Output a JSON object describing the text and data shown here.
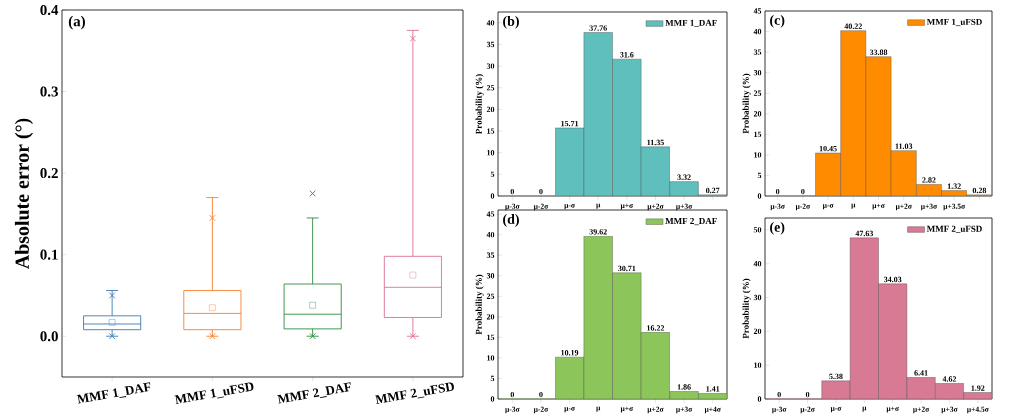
{
  "chart_data": [
    {
      "type": "box",
      "annotations": [
        "(a)"
      ],
      "ylabel": "Absolute error (°)",
      "categories": [
        "MMF 1_DAF",
        "MMF 1_uFSD",
        "MMF 2_DAF",
        "MMF 2_uFSD"
      ],
      "colors": [
        "#3a7ab5",
        "#f77f2a",
        "#2e8b3e",
        "#d9718f"
      ],
      "boxes": [
        {
          "low": 0,
          "q1": 0.008,
          "median": 0.015,
          "q3": 0.025,
          "high": 0.056,
          "mean": 0.017,
          "outliers": [
            0.05,
            0
          ]
        },
        {
          "low": 0,
          "q1": 0.008,
          "median": 0.028,
          "q3": 0.056,
          "high": 0.17,
          "mean": 0.035,
          "outliers": [
            0.145,
            0
          ]
        },
        {
          "low": 0,
          "q1": 0.009,
          "median": 0.027,
          "q3": 0.064,
          "high": 0.145,
          "mean": 0.038,
          "outliers": [
            0.175,
            0
          ]
        },
        {
          "low": 0,
          "q1": 0.023,
          "median": 0.06,
          "q3": 0.098,
          "high": 0.375,
          "mean": 0.075,
          "outliers": [
            0.365,
            0
          ]
        }
      ],
      "marker": "cross",
      "ylim": [
        -0.05,
        0.4
      ],
      "yticks": [
        {
          "value": 0,
          "label": "0.0"
        },
        {
          "value": 0.1,
          "label": "0.1"
        },
        {
          "value": 0.2,
          "label": "0.2"
        },
        {
          "value": 0.3,
          "label": "0.3"
        },
        {
          "value": 0.4,
          "label": "0.4"
        }
      ]
    },
    {
      "type": "bar",
      "annotations": [
        "(b)"
      ],
      "ylabel": "Probability (%)",
      "categories": [
        "μ-3σ",
        "μ-2σ",
        "μ-σ",
        "μ",
        "μ+σ",
        "μ+2σ",
        "μ+3σ",
        null
      ],
      "series": [
        {
          "name": "MMF 1_DAF",
          "color": "#5fbfbd",
          "values": [
            0,
            0,
            15.71,
            37.76,
            31.6,
            11.35,
            3.32,
            0.27
          ]
        }
      ],
      "legend": "top right",
      "data_labels": true,
      "ylim": [
        0,
        42.5
      ],
      "yticks": [
        0,
        5,
        10,
        15,
        20,
        25,
        30,
        35,
        40
      ]
    },
    {
      "type": "bar",
      "annotations": [
        "(c)"
      ],
      "ylabel": "Probability (%)",
      "categories": [
        "μ-3σ",
        "μ-2σ",
        "μ-σ",
        "μ",
        "μ+σ",
        "μ+2σ",
        "μ+3σ",
        "μ+3.5σ",
        null
      ],
      "series": [
        {
          "name": "MMF 1_uFSD",
          "color": "#ff8c00",
          "values": [
            0,
            0,
            10.45,
            40.22,
            33.88,
            11.03,
            2.82,
            1.32,
            0.28
          ]
        }
      ],
      "legend": "top right",
      "data_labels": true,
      "ylim": [
        0,
        45
      ],
      "yticks": [
        0,
        5,
        10,
        15,
        20,
        25,
        30,
        35,
        40,
        45
      ]
    },
    {
      "type": "bar",
      "annotations": [
        "(d)"
      ],
      "ylabel": "Probability (%)",
      "categories": [
        "μ-3σ",
        "μ-2σ",
        "μ-σ",
        "μ",
        "μ+σ",
        "μ+2σ",
        "μ+3σ",
        "μ+4σ"
      ],
      "series": [
        {
          "name": "MMF 2_DAF",
          "color": "#8cc65a",
          "values": [
            0,
            0,
            10.19,
            39.62,
            30.71,
            16.22,
            1.86,
            1.41
          ]
        }
      ],
      "legend": "top right",
      "data_labels": true,
      "ylim": [
        0,
        46
      ],
      "yticks": [
        0,
        5,
        10,
        15,
        20,
        25,
        30,
        35,
        40,
        45
      ]
    },
    {
      "type": "bar",
      "annotations": [
        "(e)"
      ],
      "ylabel": "Probability (%)",
      "categories": [
        "μ-3σ",
        "μ-2σ",
        "μ-σ",
        "μ",
        "μ+σ",
        "μ+2σ",
        "μ+3σ",
        "μ+4.5σ"
      ],
      "series": [
        {
          "name": "MMF 2_uFSD",
          "color": "#d87a93",
          "values": [
            0,
            0,
            5.38,
            47.63,
            34.03,
            6.41,
            4.62,
            1.92
          ]
        }
      ],
      "legend": "top right",
      "data_labels": true,
      "ylim": [
        0,
        53.5
      ],
      "yticks": [
        0,
        10,
        20,
        30,
        40,
        50
      ]
    }
  ]
}
